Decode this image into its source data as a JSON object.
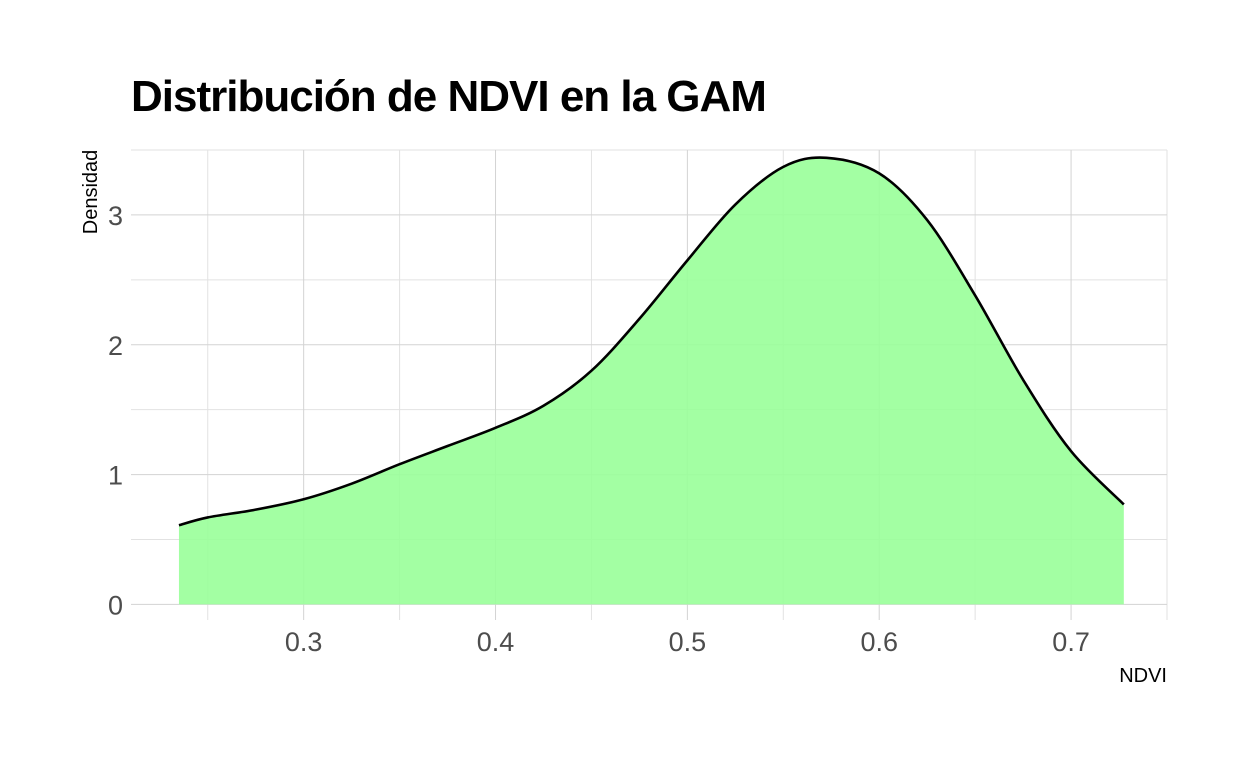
{
  "chart_data": {
    "type": "area",
    "title": "Distribución de NDVI en la GAM",
    "xlabel": "NDVI",
    "ylabel": "Densidad",
    "xlim": [
      0.21,
      0.75
    ],
    "ylim": [
      -0.12,
      3.5
    ],
    "x_ticks": [
      0.3,
      0.4,
      0.5,
      0.6,
      0.7
    ],
    "x_tick_labels": [
      "0.3",
      "0.4",
      "0.5",
      "0.6",
      "0.7"
    ],
    "y_ticks": [
      0,
      1,
      2,
      3
    ],
    "y_tick_labels": [
      "0",
      "1",
      "2",
      "3"
    ],
    "grid": true,
    "legend": "none",
    "fill_color": "#99ff99",
    "line_color": "#000000",
    "series": [
      {
        "x": [
          0.235,
          0.25,
          0.275,
          0.3,
          0.325,
          0.35,
          0.375,
          0.4,
          0.425,
          0.45,
          0.475,
          0.5,
          0.525,
          0.55,
          0.5725,
          0.6,
          0.625,
          0.65,
          0.675,
          0.7,
          0.7275
        ],
        "y": [
          0.61,
          0.67,
          0.73,
          0.81,
          0.93,
          1.08,
          1.22,
          1.36,
          1.53,
          1.8,
          2.2,
          2.65,
          3.08,
          3.37,
          3.44,
          3.32,
          2.96,
          2.38,
          1.73,
          1.18,
          0.77
        ]
      }
    ]
  }
}
